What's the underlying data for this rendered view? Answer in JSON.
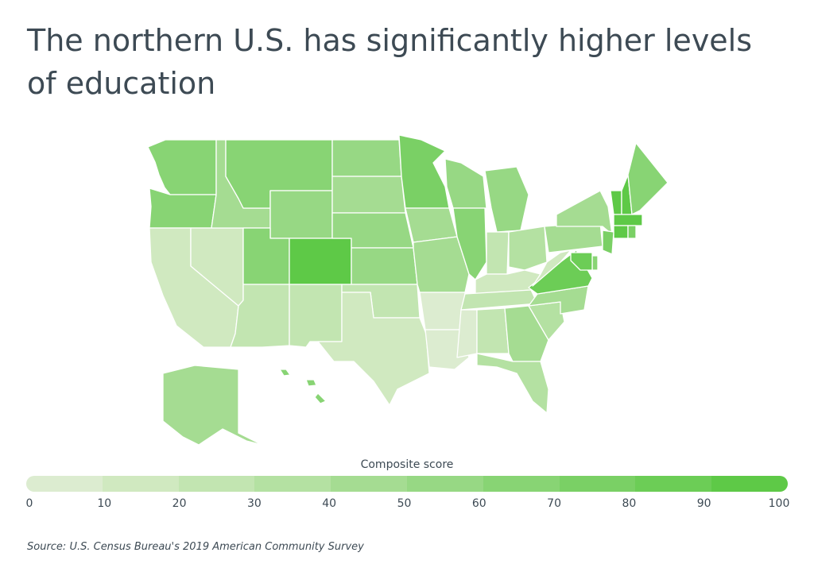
{
  "title": "The northern U.S. has significantly higher levels of education",
  "legend": {
    "title": "Composite score",
    "ticks": [
      "0",
      "10",
      "20",
      "30",
      "40",
      "50",
      "60",
      "70",
      "80",
      "90",
      "100"
    ],
    "colors": [
      "#dcecd0",
      "#d0e9c0",
      "#c2e5b1",
      "#b4e1a2",
      "#a5dc92",
      "#97d884",
      "#88d474",
      "#7ad065",
      "#6ccd56",
      "#5ec947"
    ]
  },
  "source": "Source:  U.S. Census Bureau's 2019 American Community Survey",
  "chart_data": {
    "type": "choropleth",
    "metric": "Composite score",
    "range": [
      0,
      100
    ],
    "values": {
      "WA": 60,
      "OR": 60,
      "CA": 15,
      "NV": 10,
      "ID": 40,
      "MT": 60,
      "WY": 50,
      "UT": 60,
      "AZ": 25,
      "CO": 90,
      "NM": 20,
      "ND": 55,
      "SD": 40,
      "NE": 50,
      "KS": 50,
      "OK": 20,
      "TX": 10,
      "MN": 70,
      "IA": 40,
      "MO": 40,
      "AR": 5,
      "LA": 5,
      "WI": 55,
      "IL": 60,
      "MI": 50,
      "IN": 20,
      "OH": 35,
      "KY": 15,
      "TN": 25,
      "MS": 5,
      "AL": 20,
      "GA": 40,
      "FL": 35,
      "SC": 35,
      "NC": 40,
      "VA": 85,
      "WV": 10,
      "PA": 45,
      "NY": 45,
      "VT": 95,
      "NH": 95,
      "ME": 60,
      "MA": 100,
      "CT": 90,
      "RI": 75,
      "NJ": 70,
      "DE": 60,
      "MD": 85,
      "AK": 45,
      "HI": 60
    }
  }
}
